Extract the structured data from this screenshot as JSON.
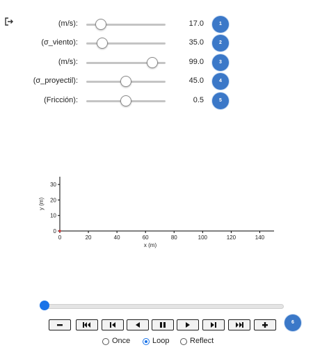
{
  "sliders": [
    {
      "label": "(m/s):",
      "value_text": "17.0",
      "badge": "1",
      "fraction": 0.18
    },
    {
      "label": "(σ_viento):",
      "value_text": "35.0",
      "badge": "2",
      "fraction": 0.2
    },
    {
      "label": "(m/s):",
      "value_text": "99.0",
      "badge": "3",
      "fraction": 0.83
    },
    {
      "label": "(σ_proyectil):",
      "value_text": "45.0",
      "badge": "4",
      "fraction": 0.5
    },
    {
      "label": "(Fricción):",
      "value_text": "0.5",
      "badge": "5",
      "fraction": 0.5
    }
  ],
  "chart_data": {
    "type": "scatter",
    "xlabel": "x (m)",
    "ylabel": "y (m)",
    "xlim": [
      0,
      150
    ],
    "ylim": [
      0,
      35
    ],
    "xticks": [
      0,
      20,
      40,
      60,
      80,
      100,
      120,
      140
    ],
    "yticks": [
      0,
      10,
      20,
      30
    ],
    "points": [
      {
        "x": 0,
        "y": 0
      }
    ],
    "marker_color": "#d62728",
    "grid": false
  },
  "player": {
    "frame_fraction": 0.0,
    "badge": "6",
    "buttons": [
      "minus",
      "first",
      "prev-frame",
      "reverse",
      "pause",
      "play",
      "next-frame",
      "last",
      "plus"
    ],
    "radio_options": [
      {
        "label": "Once",
        "selected": false
      },
      {
        "label": "Loop",
        "selected": true
      },
      {
        "label": "Reflect",
        "selected": false
      }
    ]
  },
  "colors": {
    "badge": "#3b78c8",
    "accent": "#1a73e8"
  }
}
